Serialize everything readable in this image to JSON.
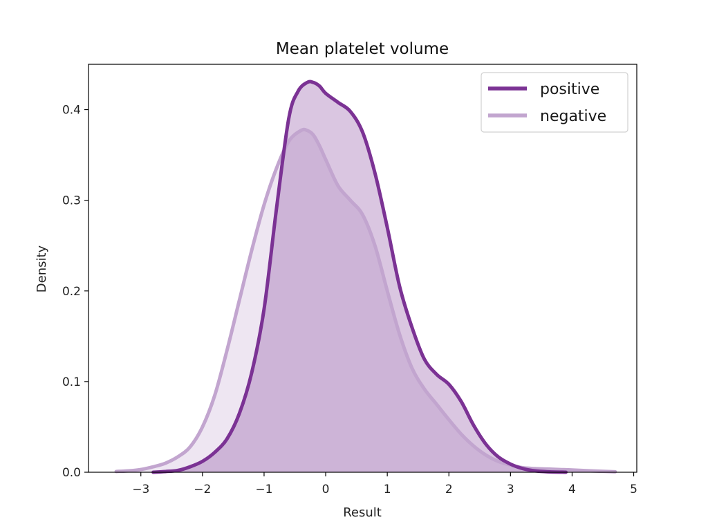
{
  "chart_data": {
    "type": "area",
    "title": "Mean platelet volume",
    "xlabel": "Result",
    "ylabel": "Density",
    "xlim": [
      -3.85,
      5.05
    ],
    "ylim": [
      0,
      0.45
    ],
    "xticks": [
      -3,
      -2,
      -1,
      0,
      1,
      2,
      3,
      4,
      5
    ],
    "xtick_labels": [
      "−3",
      "−2",
      "−1",
      "0",
      "1",
      "2",
      "3",
      "4",
      "5"
    ],
    "yticks": [
      0,
      0.1,
      0.2,
      0.3,
      0.4
    ],
    "ytick_labels": [
      "0.0",
      "0.1",
      "0.2",
      "0.3",
      "0.4"
    ],
    "grid": false,
    "legend_position": "top-right",
    "series": [
      {
        "name": "positive",
        "color": "#7b3294",
        "points": [
          [
            -2.8,
            0
          ],
          [
            -2.6,
            0.0008
          ],
          [
            -2.4,
            0.002
          ],
          [
            -2.2,
            0.006
          ],
          [
            -2.0,
            0.012
          ],
          [
            -1.8,
            0.022
          ],
          [
            -1.6,
            0.037
          ],
          [
            -1.4,
            0.065
          ],
          [
            -1.2,
            0.11
          ],
          [
            -1.0,
            0.18
          ],
          [
            -0.8,
            0.29
          ],
          [
            -0.6,
            0.39
          ],
          [
            -0.45,
            0.42
          ],
          [
            -0.3,
            0.43
          ],
          [
            -0.2,
            0.43
          ],
          [
            -0.1,
            0.426
          ],
          [
            0.0,
            0.418
          ],
          [
            0.2,
            0.408
          ],
          [
            0.4,
            0.398
          ],
          [
            0.6,
            0.375
          ],
          [
            0.8,
            0.33
          ],
          [
            1.0,
            0.27
          ],
          [
            1.2,
            0.205
          ],
          [
            1.4,
            0.16
          ],
          [
            1.6,
            0.125
          ],
          [
            1.8,
            0.108
          ],
          [
            2.0,
            0.097
          ],
          [
            2.2,
            0.078
          ],
          [
            2.4,
            0.052
          ],
          [
            2.6,
            0.031
          ],
          [
            2.8,
            0.017
          ],
          [
            3.0,
            0.009
          ],
          [
            3.2,
            0.004
          ],
          [
            3.4,
            0.0015
          ],
          [
            3.6,
            0.0005
          ],
          [
            3.9,
            0
          ]
        ]
      },
      {
        "name": "negative",
        "color": "#c2a5cf",
        "points": [
          [
            -3.4,
            0.0008
          ],
          [
            -3.2,
            0.0015
          ],
          [
            -3.0,
            0.003
          ],
          [
            -2.8,
            0.006
          ],
          [
            -2.6,
            0.01
          ],
          [
            -2.4,
            0.017
          ],
          [
            -2.2,
            0.028
          ],
          [
            -2.0,
            0.05
          ],
          [
            -1.8,
            0.085
          ],
          [
            -1.6,
            0.135
          ],
          [
            -1.4,
            0.19
          ],
          [
            -1.2,
            0.245
          ],
          [
            -1.0,
            0.295
          ],
          [
            -0.8,
            0.335
          ],
          [
            -0.6,
            0.365
          ],
          [
            -0.4,
            0.377
          ],
          [
            -0.3,
            0.377
          ],
          [
            -0.2,
            0.372
          ],
          [
            -0.1,
            0.36
          ],
          [
            0.0,
            0.345
          ],
          [
            0.2,
            0.316
          ],
          [
            0.4,
            0.3
          ],
          [
            0.6,
            0.284
          ],
          [
            0.8,
            0.25
          ],
          [
            1.0,
            0.2
          ],
          [
            1.2,
            0.152
          ],
          [
            1.4,
            0.115
          ],
          [
            1.6,
            0.092
          ],
          [
            1.8,
            0.075
          ],
          [
            2.0,
            0.058
          ],
          [
            2.2,
            0.042
          ],
          [
            2.4,
            0.029
          ],
          [
            2.6,
            0.019
          ],
          [
            2.8,
            0.012
          ],
          [
            3.0,
            0.008
          ],
          [
            3.2,
            0.005
          ],
          [
            3.4,
            0.004
          ],
          [
            3.6,
            0.0035
          ],
          [
            3.8,
            0.003
          ],
          [
            4.0,
            0.0025
          ],
          [
            4.3,
            0.0015
          ],
          [
            4.7,
            0.0005
          ]
        ]
      }
    ]
  }
}
